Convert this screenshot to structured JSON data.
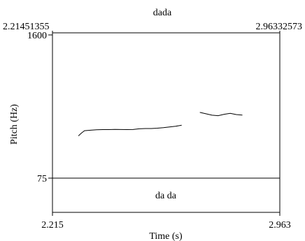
{
  "tier_label": "dada",
  "window": {
    "start_label": "2.21451355",
    "end_label": "2.96332573"
  },
  "axis": {
    "y_top_label": "1600",
    "y_bottom_label": "75",
    "ylabel": "Pitch (Hz)",
    "x_start_label": "2.215",
    "x_end_label": "2.963",
    "xlabel": "Time (s)"
  },
  "interval_text": "da da",
  "colors": {
    "frame": "#000000",
    "pitch": "#000000",
    "divider": "#000000"
  },
  "chart_data": {
    "type": "line",
    "xlim": [
      2.21451355,
      2.96332573
    ],
    "ylim": [
      75,
      1600
    ],
    "xlabel": "Time (s)",
    "ylabel": "Pitch (Hz)",
    "series": [
      {
        "points": [
          [
            2.3,
            525
          ],
          [
            2.31,
            555
          ],
          [
            2.32,
            580
          ],
          [
            2.34,
            585
          ],
          [
            2.36,
            590
          ],
          [
            2.38,
            592
          ],
          [
            2.4,
            592
          ],
          [
            2.42,
            594
          ],
          [
            2.44,
            593
          ],
          [
            2.46,
            592
          ],
          [
            2.48,
            593
          ],
          [
            2.5,
            600
          ],
          [
            2.52,
            603
          ],
          [
            2.54,
            603
          ],
          [
            2.56,
            607
          ],
          [
            2.58,
            612
          ],
          [
            2.6,
            620
          ],
          [
            2.62,
            628
          ],
          [
            2.64,
            638
          ]
        ]
      },
      {
        "points": [
          [
            2.7,
            775
          ],
          [
            2.72,
            760
          ],
          [
            2.74,
            745
          ],
          [
            2.76,
            740
          ],
          [
            2.78,
            755
          ],
          [
            2.8,
            765
          ],
          [
            2.82,
            752
          ],
          [
            2.84,
            747
          ]
        ]
      }
    ],
    "grid": false
  }
}
